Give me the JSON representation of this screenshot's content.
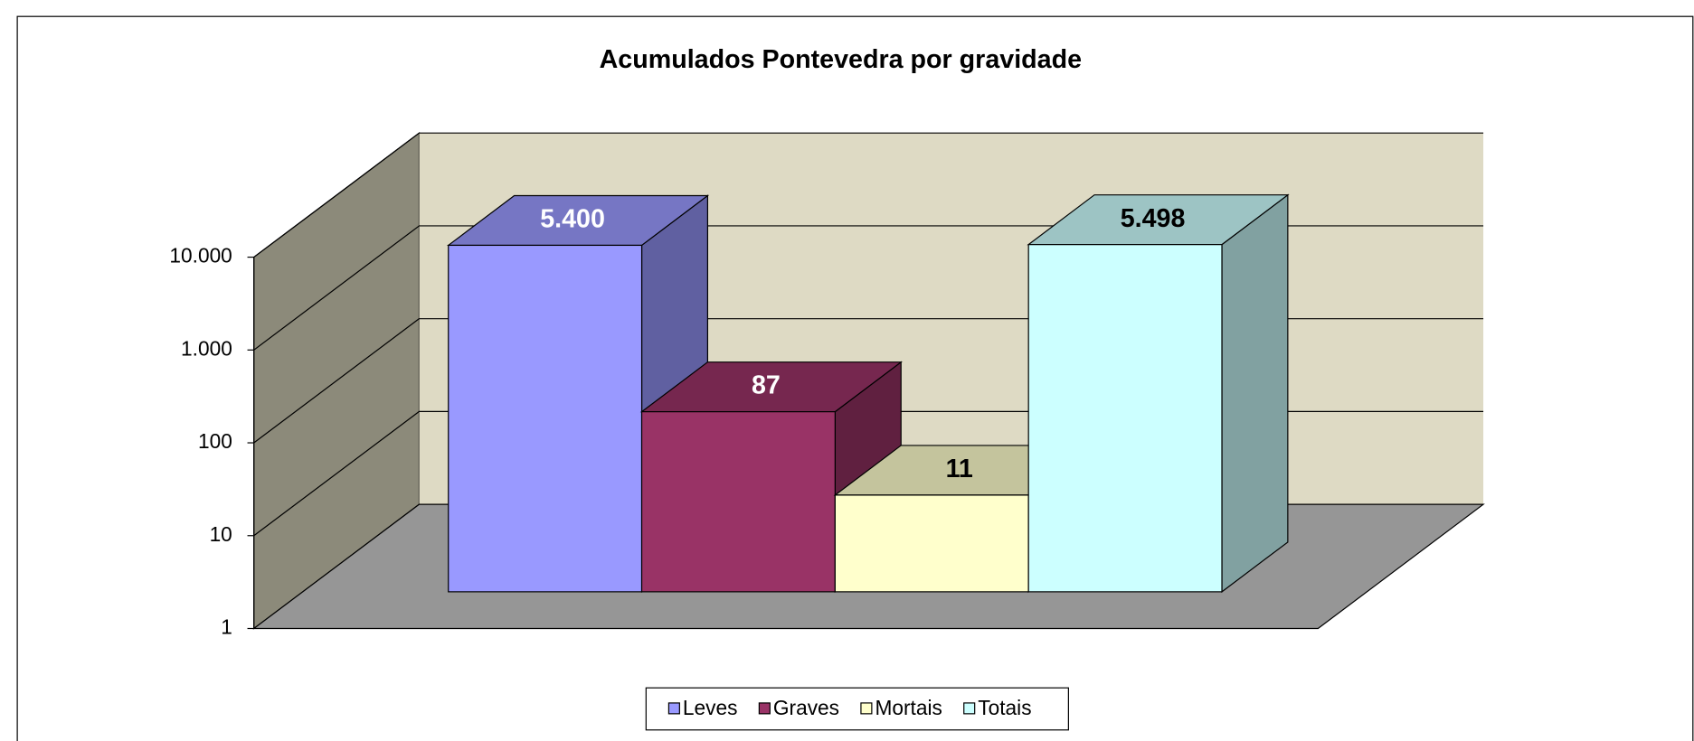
{
  "chart_data": {
    "type": "bar3d",
    "title": "Acumulados Pontevedra por gravidade",
    "log_scale": true,
    "ylim": [
      1,
      10000
    ],
    "yticks": [
      1,
      10,
      100,
      {
        "value": 1000,
        "label": "1.000"
      },
      {
        "value": 10000,
        "label": "10.000"
      }
    ],
    "grid": true,
    "legend": "bottom",
    "series": [
      {
        "name": "Leves",
        "color": "#9999ff",
        "values": [
          5400
        ],
        "value_labels": [
          "5.400"
        ]
      },
      {
        "name": "Graves",
        "color": "#993366",
        "values": [
          87
        ],
        "value_labels": [
          "87"
        ]
      },
      {
        "name": "Mortais",
        "color": "#ffffcc",
        "values": [
          11
        ],
        "value_labels": [
          "11"
        ]
      },
      {
        "name": "Totais",
        "color": "#ccffff",
        "values": [
          5498
        ],
        "value_labels": [
          "5.498"
        ]
      }
    ]
  }
}
